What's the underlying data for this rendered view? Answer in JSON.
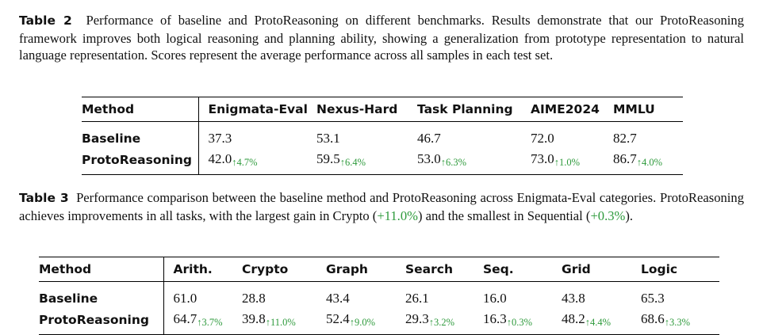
{
  "table2": {
    "label": "Table 2",
    "caption": "Performance of baseline and ProtoReasoning on different benchmarks. Results demonstrate that our ProtoReasoning framework improves both logical reasoning and planning ability, showing a generalization from prototype representation to natural language representation. Scores represent the average performance across all samples in each test set.",
    "headers": [
      "Method",
      "Enigmata-Eval",
      "Nexus-Hard",
      "Task Planning",
      "AIME2024",
      "MMLU"
    ],
    "rows": [
      {
        "method": "Baseline",
        "cells": [
          {
            "v": "37.3"
          },
          {
            "v": "53.1"
          },
          {
            "v": "46.7"
          },
          {
            "v": "72.0"
          },
          {
            "v": "82.7"
          }
        ]
      },
      {
        "method": "ProtoReasoning",
        "cells": [
          {
            "v": "42.0",
            "d": "↑4.7%"
          },
          {
            "v": "59.5",
            "d": "↑6.4%"
          },
          {
            "v": "53.0",
            "d": "↑6.3%"
          },
          {
            "v": "73.0",
            "d": "↑1.0%"
          },
          {
            "v": "86.7",
            "d": "↑4.0%"
          }
        ]
      }
    ]
  },
  "table3": {
    "label": "Table 3",
    "caption_before": "Performance comparison between the baseline method and ProtoReasoning across Enigmata-Eval categories. ProtoReasoning achieves improvements in all tasks, with the largest gain in Crypto (",
    "caption_gain1": "+11.0%",
    "caption_middle": ") and the smallest in Sequential (",
    "caption_gain2": "+0.3%",
    "caption_after": ").",
    "headers": [
      "Method",
      "Arith.",
      "Crypto",
      "Graph",
      "Search",
      "Seq.",
      "Grid",
      "Logic"
    ],
    "rows": [
      {
        "method": "Baseline",
        "cells": [
          {
            "v": "61.0"
          },
          {
            "v": "28.8"
          },
          {
            "v": "43.4"
          },
          {
            "v": "26.1"
          },
          {
            "v": "16.0"
          },
          {
            "v": "43.8"
          },
          {
            "v": "65.3"
          }
        ]
      },
      {
        "method": "ProtoReasoning",
        "cells": [
          {
            "v": "64.7",
            "d": "↑3.7%"
          },
          {
            "v": "39.8",
            "d": "↑11.0%"
          },
          {
            "v": "52.4",
            "d": "↑9.0%"
          },
          {
            "v": "29.3",
            "d": "↑3.2%"
          },
          {
            "v": "16.3",
            "d": "↑0.3%"
          },
          {
            "v": "48.2",
            "d": "↑4.4%"
          },
          {
            "v": "68.6",
            "d": "↑3.3%"
          }
        ]
      }
    ]
  },
  "colors": {
    "gain": "#2e9a3c"
  }
}
